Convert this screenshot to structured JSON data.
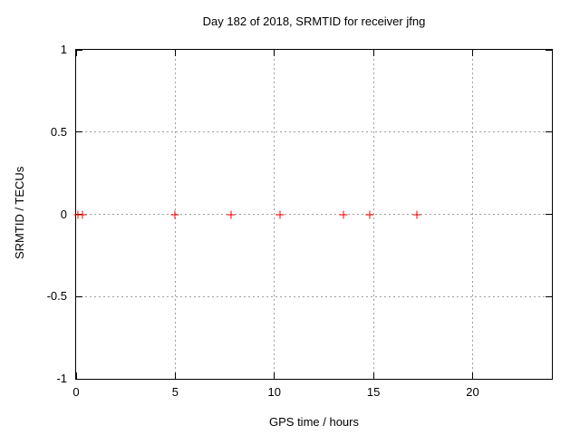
{
  "chart_data": {
    "type": "scatter",
    "title": "Day 182 of 2018, SRMTID for receiver jfng",
    "xlabel": "GPS time / hours",
    "ylabel": "SRMTID / TECUs",
    "xlim": [
      0,
      24
    ],
    "ylim": [
      -1,
      1
    ],
    "xticks": [
      0,
      5,
      10,
      15,
      20
    ],
    "xtick_labels": [
      "0",
      "5",
      "10",
      "15",
      "20"
    ],
    "yticks": [
      -1,
      -0.5,
      0,
      0.5,
      1
    ],
    "ytick_labels": [
      "-1",
      "-0.5",
      "0",
      "0.5",
      "1"
    ],
    "grid": true,
    "legend_position": "none",
    "series": [
      {
        "marker": "plus",
        "color": "#ff0000",
        "points": [
          {
            "x": 0.1,
            "y": 0
          },
          {
            "x": 0.3,
            "y": 0
          },
          {
            "x": 5.0,
            "y": 0
          },
          {
            "x": 7.8,
            "y": 0
          },
          {
            "x": 10.3,
            "y": 0
          },
          {
            "x": 13.5,
            "y": 0
          },
          {
            "x": 14.8,
            "y": 0
          },
          {
            "x": 17.2,
            "y": 0
          }
        ]
      }
    ],
    "colors": {
      "background": "#ffffff",
      "frame": "#000000",
      "grid": "#9e9e9e",
      "text": "#000000",
      "marker": "#ff0000"
    }
  }
}
